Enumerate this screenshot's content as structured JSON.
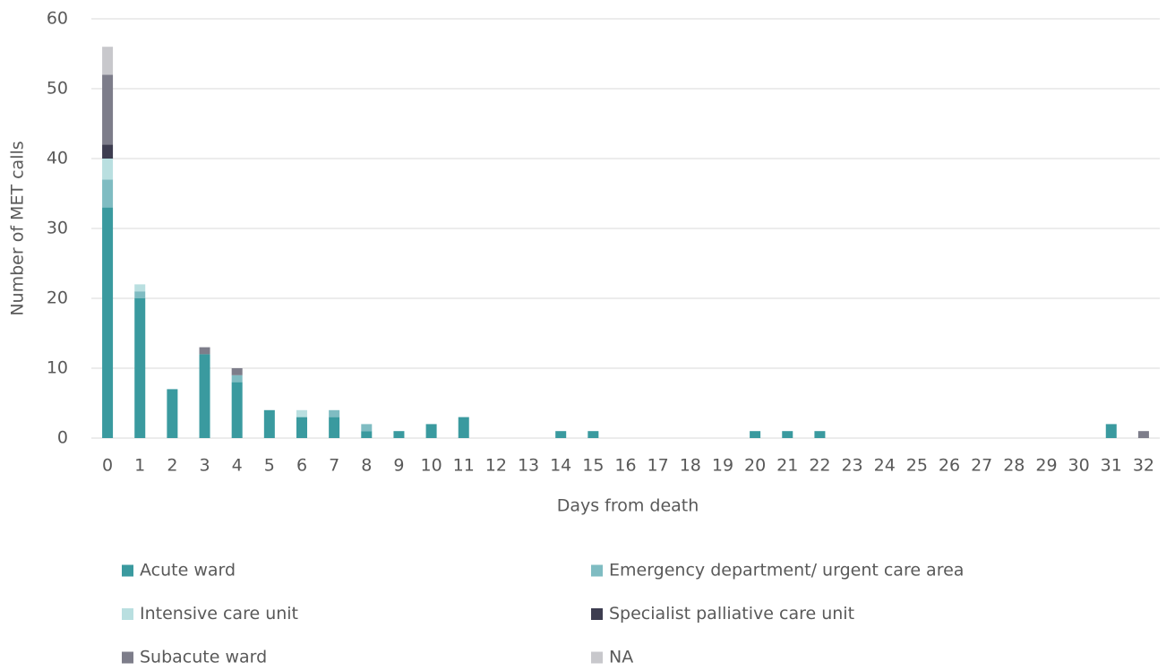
{
  "chart_data": {
    "type": "stacked_bar",
    "x_label": "Days from death",
    "y_label": "Number of MET calls",
    "categories": [
      "0",
      "1",
      "2",
      "3",
      "4",
      "5",
      "6",
      "7",
      "8",
      "9",
      "10",
      "11",
      "12",
      "13",
      "14",
      "15",
      "16",
      "17",
      "18",
      "19",
      "20",
      "21",
      "22",
      "23",
      "24",
      "25",
      "26",
      "27",
      "28",
      "29",
      "30",
      "31",
      "32"
    ],
    "series": [
      {
        "name": "Acute ward",
        "color": "#3a9a9f",
        "values": [
          33,
          20,
          7,
          12,
          8,
          4,
          3,
          3,
          1,
          1,
          2,
          3,
          0,
          0,
          1,
          1,
          0,
          0,
          0,
          0,
          1,
          1,
          1,
          0,
          0,
          0,
          0,
          0,
          0,
          0,
          0,
          2,
          0
        ]
      },
      {
        "name": "Emergency department/ urgent care area",
        "color": "#7fbcc2",
        "values": [
          4,
          1,
          0,
          0,
          1,
          0,
          0,
          1,
          1,
          0,
          0,
          0,
          0,
          0,
          0,
          0,
          0,
          0,
          0,
          0,
          0,
          0,
          0,
          0,
          0,
          0,
          0,
          0,
          0,
          0,
          0,
          0,
          0
        ]
      },
      {
        "name": "Intensive care unit",
        "color": "#b9dfe0",
        "values": [
          3,
          1,
          0,
          0,
          0,
          0,
          1,
          0,
          0,
          0,
          0,
          0,
          0,
          0,
          0,
          0,
          0,
          0,
          0,
          0,
          0,
          0,
          0,
          0,
          0,
          0,
          0,
          0,
          0,
          0,
          0,
          0,
          0
        ]
      },
      {
        "name": "Specialist palliative care unit",
        "color": "#3d3d50",
        "values": [
          2,
          0,
          0,
          0,
          0,
          0,
          0,
          0,
          0,
          0,
          0,
          0,
          0,
          0,
          0,
          0,
          0,
          0,
          0,
          0,
          0,
          0,
          0,
          0,
          0,
          0,
          0,
          0,
          0,
          0,
          0,
          0,
          0
        ]
      },
      {
        "name": "Subacute ward",
        "color": "#7d7d8a",
        "values": [
          10,
          0,
          0,
          1,
          1,
          0,
          0,
          0,
          0,
          0,
          0,
          0,
          0,
          0,
          0,
          0,
          0,
          0,
          0,
          0,
          0,
          0,
          0,
          0,
          0,
          0,
          0,
          0,
          0,
          0,
          0,
          0,
          1
        ]
      },
      {
        "name": "NA",
        "color": "#c8c8cc",
        "values": [
          4,
          0,
          0,
          0,
          0,
          0,
          0,
          0,
          0,
          0,
          0,
          0,
          0,
          0,
          0,
          0,
          0,
          0,
          0,
          0,
          0,
          0,
          0,
          0,
          0,
          0,
          0,
          0,
          0,
          0,
          0,
          0,
          0
        ]
      }
    ],
    "ylim": [
      0,
      60
    ],
    "yticks": [
      0,
      10,
      20,
      30,
      40,
      50,
      60
    ],
    "grid": true,
    "legend": "bottom"
  }
}
